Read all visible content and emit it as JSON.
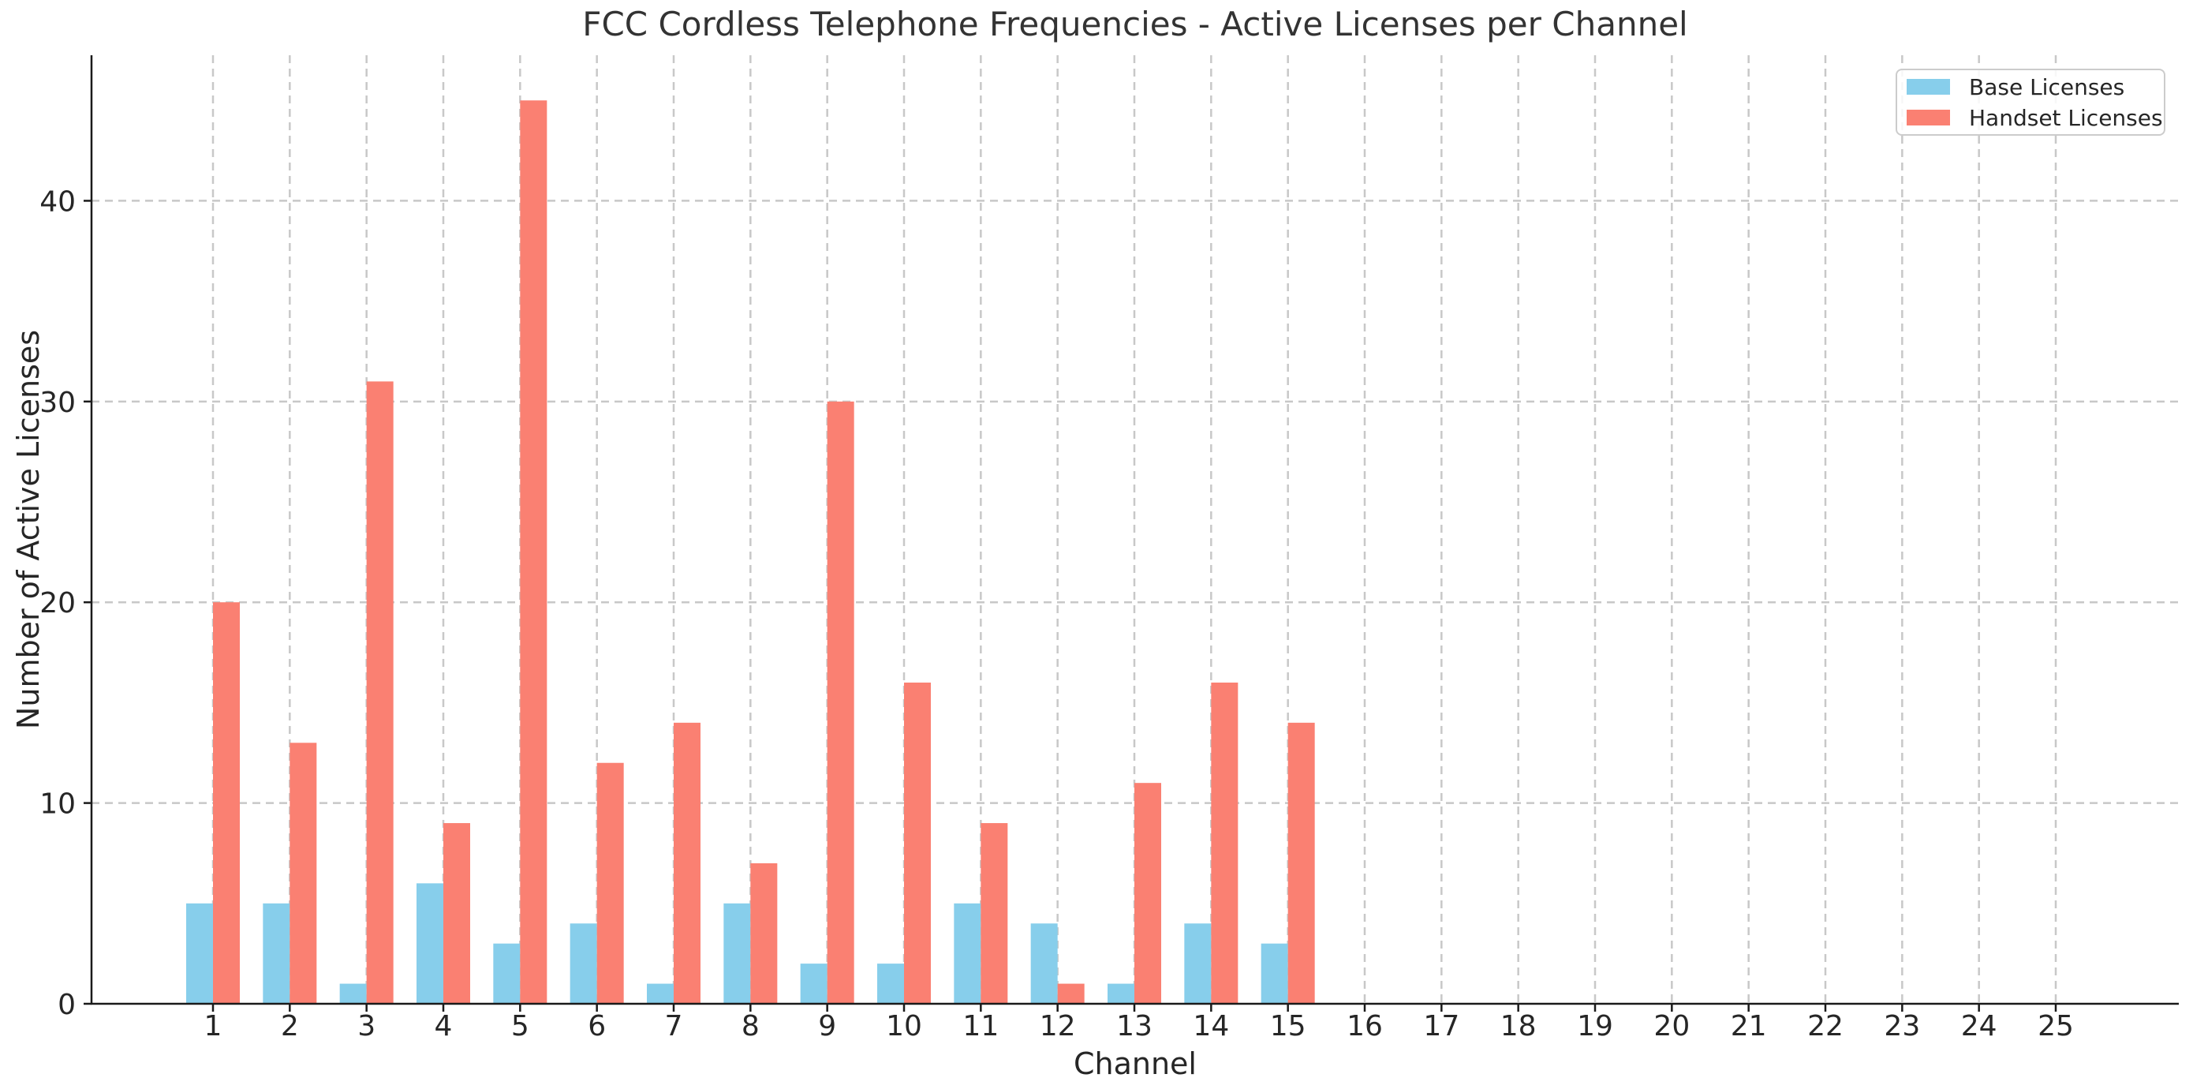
{
  "chart_data": {
    "type": "bar",
    "title": "FCC Cordless Telephone Frequencies - Active Licenses per Channel",
    "xlabel": "Channel",
    "ylabel": "Number of Active Licenses",
    "categories": [
      1,
      2,
      3,
      4,
      5,
      6,
      7,
      8,
      9,
      10,
      11,
      12,
      13,
      14,
      15,
      16,
      17,
      18,
      19,
      20,
      21,
      22,
      23,
      24,
      25
    ],
    "series": [
      {
        "name": "Base Licenses",
        "color": "#87CEEB",
        "values": [
          5,
          5,
          1,
          6,
          3,
          4,
          1,
          5,
          2,
          2,
          5,
          4,
          1,
          4,
          3,
          0,
          0,
          0,
          0,
          0,
          0,
          0,
          0,
          0,
          0
        ]
      },
      {
        "name": "Handset Licenses",
        "color": "#FA8072",
        "values": [
          20,
          13,
          31,
          9,
          45,
          12,
          14,
          7,
          30,
          16,
          9,
          1,
          11,
          16,
          14,
          0,
          0,
          0,
          0,
          0,
          0,
          0,
          0,
          0,
          0
        ]
      }
    ],
    "ylim": [
      0,
      47.25
    ],
    "yticks": [
      0,
      10,
      20,
      30,
      40
    ],
    "grid": true,
    "grid_style": "dashed",
    "legend_position": "upper right",
    "bar_width": 0.35,
    "colors": {
      "grid": "#c8c8c8",
      "axis": "#1a1a1a",
      "tick_text": "#262626",
      "background": "#ffffff"
    }
  }
}
